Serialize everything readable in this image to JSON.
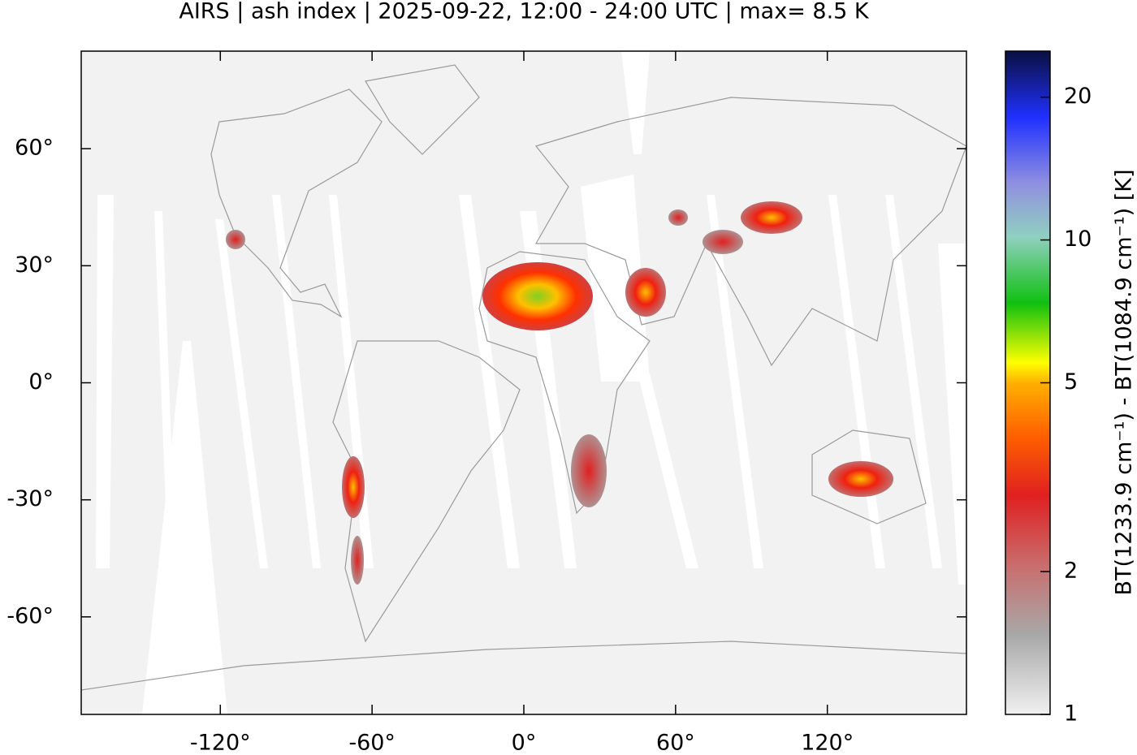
{
  "chart_data": {
    "type": "map",
    "title": "AIRS | ash index | 2025-09-22, 12:00 - 24:00 UTC | max= 8.5 K",
    "xlim": [
      -175,
      175
    ],
    "ylim": [
      -85,
      85
    ],
    "xticks": [
      {
        "value": -120,
        "label": "-120°"
      },
      {
        "value": -60,
        "label": "-60°"
      },
      {
        "value": 0,
        "label": "0°"
      },
      {
        "value": 60,
        "label": "60°"
      },
      {
        "value": 120,
        "label": "120°"
      }
    ],
    "yticks": [
      {
        "value": 60,
        "label": "60°"
      },
      {
        "value": 30,
        "label": "30°"
      },
      {
        "value": 0,
        "label": "0°"
      },
      {
        "value": -30,
        "label": "-30°"
      },
      {
        "value": -60,
        "label": "-60°"
      }
    ],
    "colorbar": {
      "label": "BT(1233.9 cm⁻¹) - BT(1084.9 cm⁻¹) [K]",
      "lim": [
        1,
        25
      ],
      "log": true,
      "ticks": [
        1,
        2,
        5,
        10,
        20
      ]
    }
  }
}
